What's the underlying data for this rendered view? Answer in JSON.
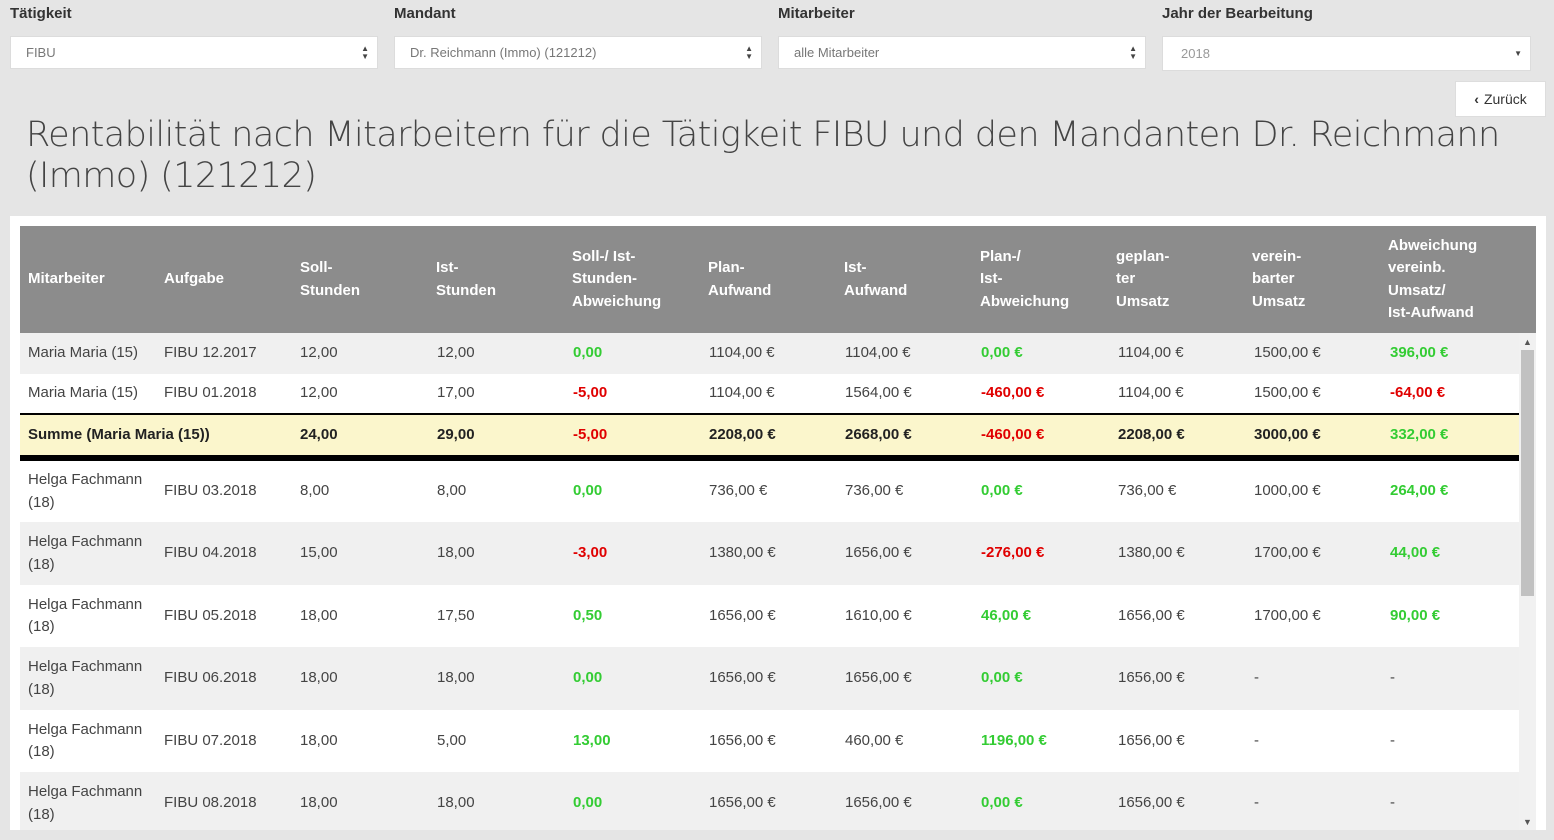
{
  "filters": {
    "taetigkeit": {
      "label": "Tätigkeit",
      "value": "FIBU"
    },
    "mandant": {
      "label": "Mandant",
      "value": "Dr. Reichmann (Immo) (121212)"
    },
    "mitarbeiter": {
      "label": "Mitarbeiter",
      "value": "alle Mitarbeiter"
    },
    "jahr": {
      "label": "Jahr der Bearbeitung",
      "value": "2018"
    }
  },
  "back_button": {
    "icon": "chevron-left-icon",
    "label": "Zurück"
  },
  "page_title": "Rentabilität nach Mitarbeitern für die Tätigkeit FIBU und den Mandanten Dr. Reichmann (Immo) (121212)",
  "colors": {
    "header_bg": "#8c8c8c",
    "positive": "#33cc33",
    "negative": "#e00000",
    "sum_bg": "#fbf6cc"
  },
  "table": {
    "headers": [
      "Mitarbeiter",
      "Aufgabe",
      "Soll-\nStunden",
      "Ist-\nStunden",
      "Soll-/ Ist-\nStunden-\nAbweichung",
      "Plan-\nAufwand",
      "Ist-\nAufwand",
      "Plan-/\nIst-\nAbweichung",
      "geplan-\nter\nUmsatz",
      "verein-\nbarter\nUmsatz",
      "Abweichung\nvereinb.\nUmsatz/\nIst-Aufwand"
    ],
    "rows": [
      {
        "mitarbeiter": "Maria Maria (15)",
        "aufgabe": "FIBU 12.2017",
        "soll": "12,00",
        "ist": "12,00",
        "stdabw": "0,00",
        "plan": "1104,00 €",
        "istaufwand": "1104,00 €",
        "planabw": "0,00 €",
        "geplant": "1104,00 €",
        "vereinbart": "1500,00 €",
        "abw": "396,00 €"
      },
      {
        "mitarbeiter": "Maria Maria (15)",
        "aufgabe": "FIBU 01.2018",
        "soll": "12,00",
        "ist": "17,00",
        "stdabw": "-5,00",
        "plan": "1104,00 €",
        "istaufwand": "1564,00 €",
        "planabw": "-460,00 €",
        "geplant": "1104,00 €",
        "vereinbart": "1500,00 €",
        "abw": "-64,00 €"
      },
      {
        "mitarbeiter": "Summe (Maria Maria (15))",
        "aufgabe": "",
        "soll": "24,00",
        "ist": "29,00",
        "stdabw": "-5,00",
        "plan": "2208,00 €",
        "istaufwand": "2668,00 €",
        "planabw": "-460,00 €",
        "geplant": "2208,00 €",
        "vereinbart": "3000,00 €",
        "abw": "332,00 €"
      },
      {
        "mitarbeiter": "Helga Fachmann\n(18)",
        "aufgabe": "FIBU 03.2018",
        "soll": "8,00",
        "ist": "8,00",
        "stdabw": "0,00",
        "plan": "736,00 €",
        "istaufwand": "736,00 €",
        "planabw": "0,00 €",
        "geplant": "736,00 €",
        "vereinbart": "1000,00 €",
        "abw": "264,00 €"
      },
      {
        "mitarbeiter": "Helga Fachmann\n(18)",
        "aufgabe": "FIBU 04.2018",
        "soll": "15,00",
        "ist": "18,00",
        "stdabw": "-3,00",
        "plan": "1380,00 €",
        "istaufwand": "1656,00 €",
        "planabw": "-276,00 €",
        "geplant": "1380,00 €",
        "vereinbart": "1700,00 €",
        "abw": "44,00 €"
      },
      {
        "mitarbeiter": "Helga Fachmann\n(18)",
        "aufgabe": "FIBU 05.2018",
        "soll": "18,00",
        "ist": "17,50",
        "stdabw": "0,50",
        "plan": "1656,00 €",
        "istaufwand": "1610,00 €",
        "planabw": "46,00 €",
        "geplant": "1656,00 €",
        "vereinbart": "1700,00 €",
        "abw": "90,00 €"
      },
      {
        "mitarbeiter": "Helga Fachmann\n(18)",
        "aufgabe": "FIBU 06.2018",
        "soll": "18,00",
        "ist": "18,00",
        "stdabw": "0,00",
        "plan": "1656,00 €",
        "istaufwand": "1656,00 €",
        "planabw": "0,00 €",
        "geplant": "1656,00 €",
        "vereinbart": "-",
        "abw": "-"
      },
      {
        "mitarbeiter": "Helga Fachmann\n(18)",
        "aufgabe": "FIBU 07.2018",
        "soll": "18,00",
        "ist": "5,00",
        "stdabw": "13,00",
        "plan": "1656,00 €",
        "istaufwand": "460,00 €",
        "planabw": "1196,00 €",
        "geplant": "1656,00 €",
        "vereinbart": "-",
        "abw": "-"
      },
      {
        "mitarbeiter": "Helga Fachmann\n(18)",
        "aufgabe": "FIBU 08.2018",
        "soll": "18,00",
        "ist": "18,00",
        "stdabw": "0,00",
        "plan": "1656,00 €",
        "istaufwand": "1656,00 €",
        "planabw": "0,00 €",
        "geplant": "1656,00 €",
        "vereinbart": "-",
        "abw": "-"
      }
    ]
  }
}
